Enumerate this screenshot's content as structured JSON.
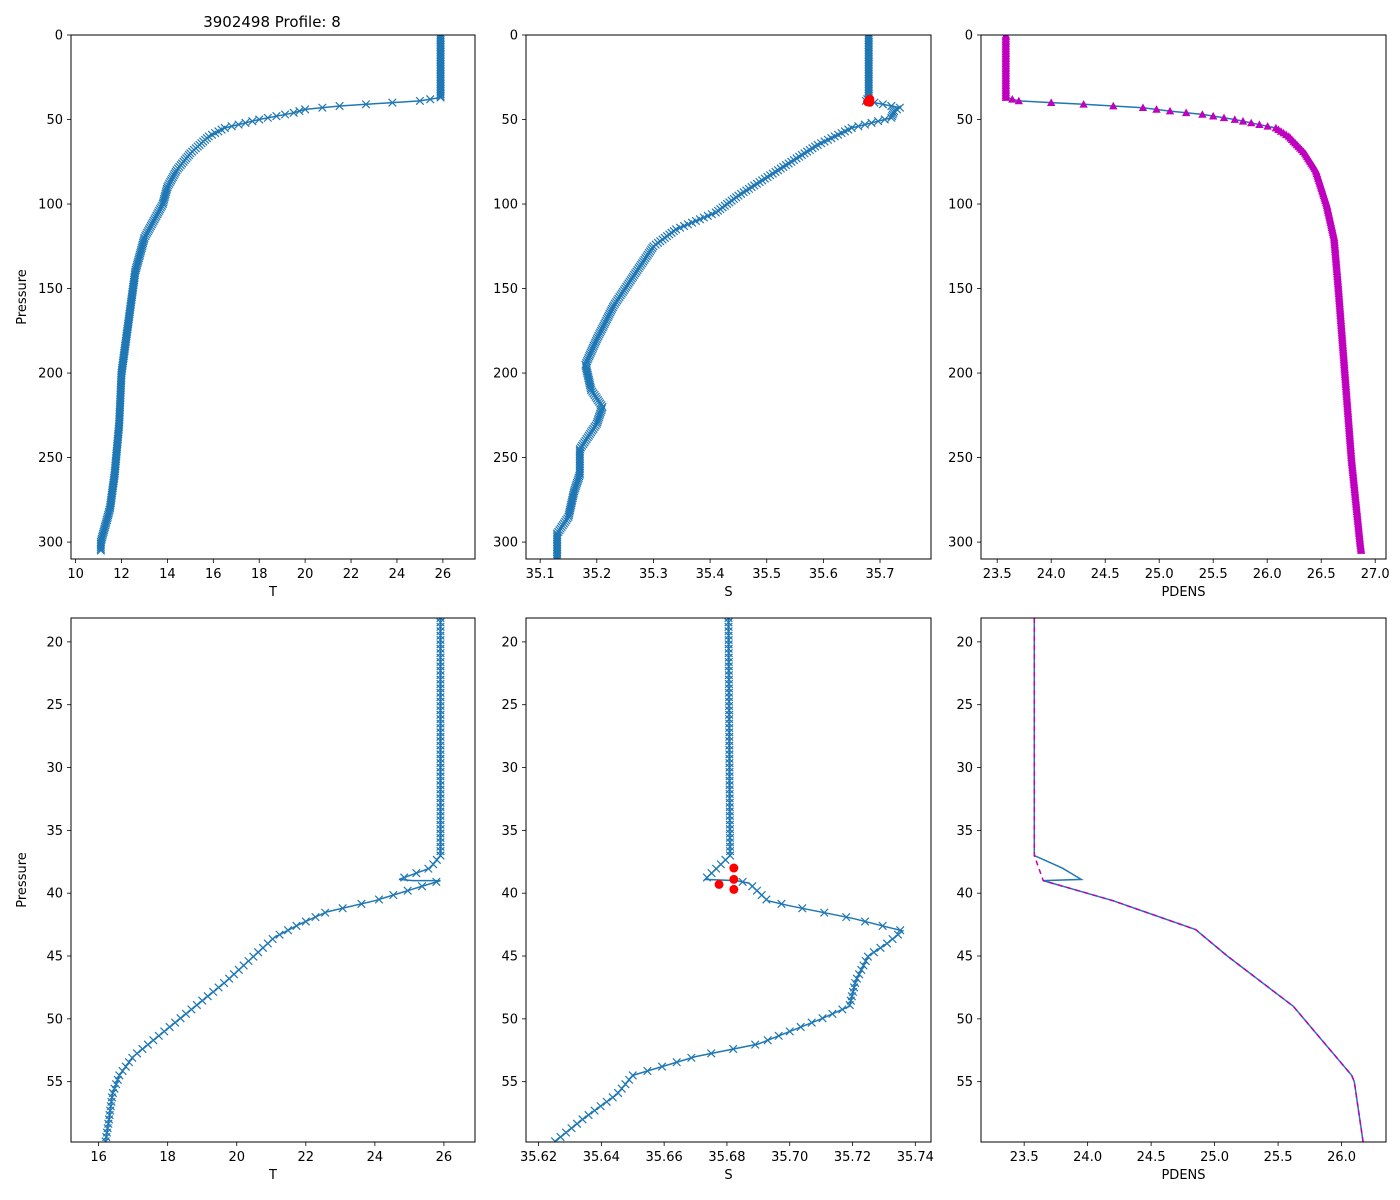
{
  "figure": {
    "title": "3902498 Profile: 8"
  },
  "colors": {
    "line": "#1f77b4",
    "flag": "#ff0000",
    "density": "#bf00bf"
  },
  "chart_data": [
    {
      "id": "t-full",
      "type": "line",
      "xlabel": "T",
      "ylabel": "Pressure",
      "xlim": [
        9.8,
        27.4
      ],
      "ylim": [
        310,
        0
      ],
      "xticks": [
        10,
        12,
        14,
        16,
        18,
        20,
        22,
        24,
        26
      ],
      "xtick_labels": [
        "10",
        "12",
        "14",
        "16",
        "18",
        "20",
        "22",
        "24",
        "26"
      ],
      "yticks": [
        0,
        50,
        100,
        150,
        200,
        250,
        300
      ],
      "ytick_labels": [
        "0",
        "50",
        "100",
        "150",
        "200",
        "250",
        "300"
      ],
      "marker": "x",
      "marker_density": 1.0,
      "series": [
        {
          "name": "T",
          "pressure": [
            0,
            37,
            39,
            40,
            42,
            44,
            46,
            50,
            55,
            60,
            70,
            80,
            90,
            100,
            110,
            120,
            130,
            140,
            150,
            160,
            170,
            180,
            200,
            230,
            260,
            280,
            300,
            305
          ],
          "values": [
            25.9,
            25.9,
            25.0,
            23.8,
            21.5,
            20.0,
            19.5,
            18.0,
            16.5,
            15.8,
            15.0,
            14.4,
            14.0,
            13.8,
            13.4,
            13.0,
            12.8,
            12.6,
            12.5,
            12.4,
            12.3,
            12.2,
            12.0,
            11.9,
            11.7,
            11.5,
            11.1,
            11.1
          ]
        }
      ],
      "flags": []
    },
    {
      "id": "s-full",
      "type": "line",
      "xlabel": "S",
      "ylabel": "",
      "xlim": [
        35.075,
        35.79
      ],
      "ylim": [
        310,
        0
      ],
      "xticks": [
        35.1,
        35.2,
        35.3,
        35.4,
        35.5,
        35.6,
        35.7
      ],
      "xtick_labels": [
        "35.1",
        "35.2",
        "35.3",
        "35.4",
        "35.5",
        "35.6",
        "35.7"
      ],
      "yticks": [
        0,
        50,
        100,
        150,
        200,
        250,
        300
      ],
      "ytick_labels": [
        "0",
        "50",
        "100",
        "150",
        "200",
        "250",
        "300"
      ],
      "marker": "x",
      "marker_density": 1.0,
      "series": [
        {
          "name": "S",
          "pressure": [
            0,
            37,
            39,
            40,
            43,
            45,
            49,
            55,
            65,
            80,
            95,
            105,
            115,
            125,
            140,
            160,
            180,
            195,
            210,
            220,
            230,
            245,
            260,
            270,
            285,
            295,
            310
          ],
          "values": [
            35.68,
            35.68,
            35.675,
            35.69,
            35.735,
            35.725,
            35.72,
            35.65,
            35.59,
            35.52,
            35.45,
            35.41,
            35.34,
            35.3,
            35.27,
            35.23,
            35.2,
            35.18,
            35.19,
            35.21,
            35.2,
            35.17,
            35.17,
            35.16,
            35.15,
            35.13,
            35.13
          ]
        }
      ],
      "flags": [
        {
          "pressure": 38.0,
          "value": 35.682
        },
        {
          "pressure": 39.0,
          "value": 35.682
        },
        {
          "pressure": 39.5,
          "value": 35.678
        },
        {
          "pressure": 39.8,
          "value": 35.682
        }
      ]
    },
    {
      "id": "pdens-full",
      "type": "line",
      "xlabel": "PDENS",
      "ylabel": "",
      "xlim": [
        23.35,
        27.1
      ],
      "ylim": [
        310,
        0
      ],
      "xticks": [
        23.5,
        24.0,
        24.5,
        25.0,
        25.5,
        26.0,
        26.5,
        27.0
      ],
      "xtick_labels": [
        "23.5",
        "24.0",
        "24.5",
        "25.0",
        "25.5",
        "26.0",
        "26.5",
        "27.0"
      ],
      "yticks": [
        0,
        50,
        100,
        150,
        200,
        250,
        300
      ],
      "ytick_labels": [
        "0",
        "50",
        "100",
        "150",
        "200",
        "250",
        "300"
      ],
      "marker": "triangle",
      "marker_density": 1.0,
      "series": [
        {
          "name": "PDENS",
          "pressure": [
            0,
            37,
            39,
            40,
            41,
            43,
            45,
            47,
            50,
            55,
            60,
            70,
            80,
            100,
            120,
            150,
            200,
            250,
            300,
            305
          ],
          "values": [
            23.58,
            23.58,
            23.7,
            24.0,
            24.3,
            24.85,
            25.1,
            25.4,
            25.7,
            26.08,
            26.2,
            26.35,
            26.45,
            26.55,
            26.62,
            26.66,
            26.72,
            26.78,
            26.86,
            26.87
          ]
        }
      ],
      "flags": []
    },
    {
      "id": "t-zoom",
      "type": "line",
      "xlabel": "T",
      "ylabel": "Pressure",
      "xlim": [
        15.2,
        26.9
      ],
      "ylim": [
        59.8,
        18.1
      ],
      "xticks": [
        16,
        18,
        20,
        22,
        24,
        26
      ],
      "xtick_labels": [
        "16",
        "18",
        "20",
        "22",
        "24",
        "26"
      ],
      "yticks": [
        20,
        25,
        30,
        35,
        40,
        45,
        50,
        55
      ],
      "ytick_labels": [
        "20",
        "25",
        "30",
        "35",
        "40",
        "45",
        "50",
        "55"
      ],
      "marker": "x",
      "marker_density": 0.35,
      "series": [
        {
          "name": "T",
          "pressure": [
            18.1,
            37,
            38,
            38.9,
            39.0,
            39.0,
            40.6,
            41.5,
            42.5,
            43.5,
            45.0,
            47.0,
            49.0,
            51.0,
            53.0,
            54.5,
            56.0,
            58.0,
            59.8
          ],
          "values": [
            25.9,
            25.9,
            25.6,
            24.7,
            25.1,
            25.9,
            24.0,
            22.6,
            21.8,
            21.1,
            20.5,
            19.7,
            18.8,
            17.9,
            17.0,
            16.6,
            16.4,
            16.3,
            16.2
          ]
        }
      ],
      "flags": []
    },
    {
      "id": "s-zoom",
      "type": "line",
      "xlabel": "S",
      "ylabel": "",
      "xlim": [
        35.616,
        35.745
      ],
      "ylim": [
        59.8,
        18.1
      ],
      "xticks": [
        35.62,
        35.64,
        35.66,
        35.68,
        35.7,
        35.72,
        35.74
      ],
      "xtick_labels": [
        "35.62",
        "35.64",
        "35.66",
        "35.68",
        "35.70",
        "35.72",
        "35.74"
      ],
      "yticks": [
        20,
        25,
        30,
        35,
        40,
        45,
        50,
        55
      ],
      "ytick_labels": [
        "20",
        "25",
        "30",
        "35",
        "40",
        "45",
        "50",
        "55"
      ],
      "marker": "x",
      "marker_density": 0.35,
      "series": [
        {
          "name": "S",
          "pressure": [
            18.1,
            37.0,
            38.9,
            39.0,
            39.2,
            40.6,
            41.0,
            42.0,
            43.0,
            44.0,
            45.0,
            47.0,
            49.0,
            50.0,
            52.0,
            53.0,
            54.5,
            56.0,
            58.0,
            59.8
          ],
          "values": [
            35.6805,
            35.681,
            35.673,
            35.683,
            35.687,
            35.693,
            35.7,
            35.72,
            35.736,
            35.731,
            35.725,
            35.721,
            35.719,
            35.71,
            35.69,
            35.67,
            35.65,
            35.645,
            35.634,
            35.625
          ]
        }
      ],
      "flags": [
        {
          "pressure": 38.0,
          "value": 35.6822
        },
        {
          "pressure": 38.9,
          "value": 35.6822
        },
        {
          "pressure": 39.3,
          "value": 35.6775
        },
        {
          "pressure": 39.7,
          "value": 35.6822
        }
      ]
    },
    {
      "id": "pdens-zoom",
      "type": "line",
      "xlabel": "PDENS",
      "ylabel": "",
      "xlim": [
        23.16,
        26.35
      ],
      "ylim": [
        59.8,
        18.1
      ],
      "xticks": [
        23.5,
        24.0,
        24.5,
        25.0,
        25.5,
        26.0
      ],
      "xtick_labels": [
        "23.5",
        "24.0",
        "24.5",
        "25.0",
        "25.5",
        "26.0"
      ],
      "yticks": [
        20,
        25,
        30,
        35,
        40,
        45,
        50,
        55
      ],
      "ytick_labels": [
        "20",
        "25",
        "30",
        "35",
        "40",
        "45",
        "50",
        "55"
      ],
      "marker": "none",
      "marker_density": 0,
      "series": [
        {
          "name": "PDENS",
          "pressure": [
            18.1,
            37.0,
            38.0,
            38.9,
            39.0,
            40.6,
            42.9,
            45.0,
            49.0,
            54.5,
            55.0,
            59.8
          ],
          "values": [
            23.58,
            23.58,
            23.8,
            23.95,
            23.65,
            24.2,
            24.85,
            25.1,
            25.62,
            26.08,
            26.1,
            26.17
          ]
        }
      ],
      "overlay": {
        "name": "PDENS-dashed",
        "pressure": [
          18.1,
          37.0,
          39.0,
          40.6,
          42.9,
          45.0,
          49.0,
          54.5,
          55.0,
          59.8
        ],
        "values": [
          23.58,
          23.58,
          23.65,
          24.2,
          24.85,
          25.1,
          25.62,
          26.08,
          26.1,
          26.17
        ]
      },
      "flags": []
    }
  ]
}
